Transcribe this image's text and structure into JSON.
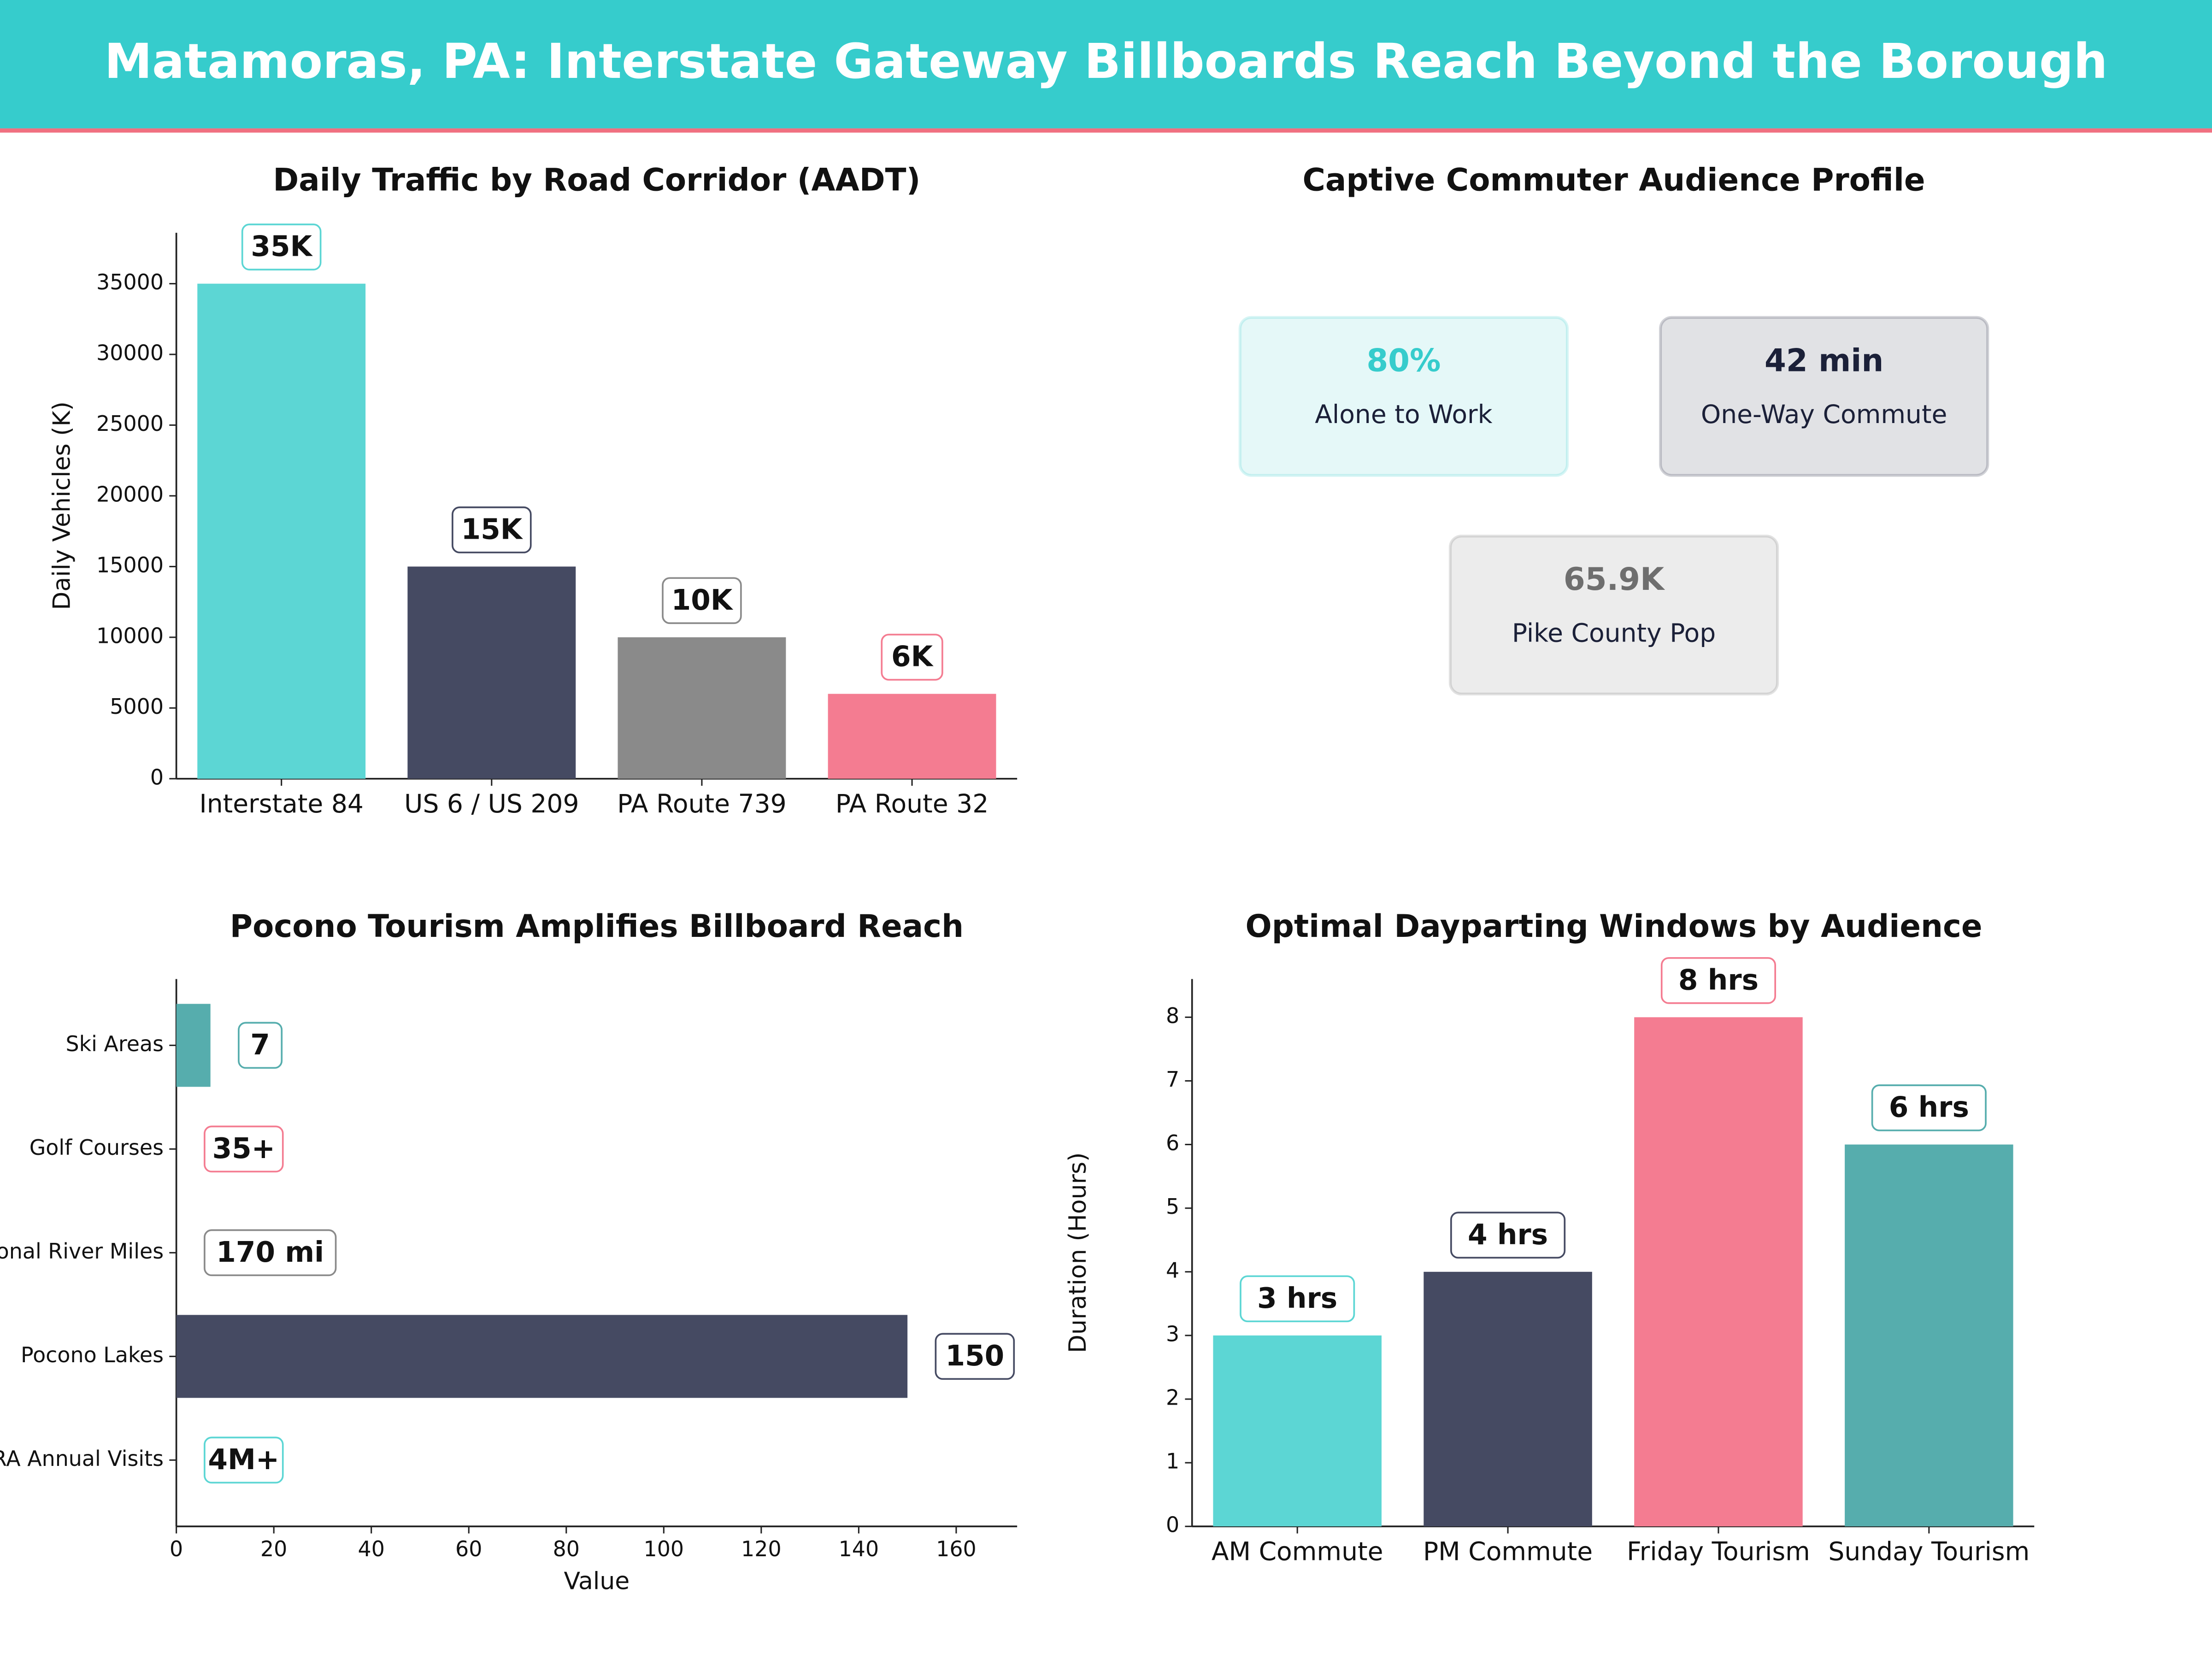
{
  "title": "Matamoras, PA: Interstate Gateway Billboards Reach Beyond the Borough",
  "chart_data": [
    {
      "type": "bar",
      "title": "Daily Traffic by Road Corridor (AADT)",
      "categories": [
        "Interstate 84",
        "US 6 / US 209",
        "PA Route 739",
        "PA Route 32"
      ],
      "values": [
        35000,
        15000,
        10000,
        6000
      ],
      "value_labels": [
        "35K",
        "15K",
        "10K",
        "6K"
      ],
      "colors": [
        "#5cd6d4",
        "#454a62",
        "#8a8a8a",
        "#f47c91"
      ],
      "ylabel": "Daily Vehicles (K)",
      "ylim": [
        0,
        38600
      ],
      "yticks": [
        0,
        5000,
        10000,
        15000,
        20000,
        25000,
        30000,
        35000
      ]
    },
    {
      "type": "kpi",
      "title": "Captive Commuter Audience Profile",
      "values": [
        80,
        42,
        65900
      ],
      "value_labels": [
        "80%",
        "42 min",
        "65.9K"
      ],
      "labels": [
        "Alone to Work",
        "One-Way Commute",
        "Pike County Pop"
      ],
      "colors": [
        "#36cccc",
        "#1b2038",
        "#6e6e6e"
      ]
    },
    {
      "type": "hbar",
      "title": "Pocono Tourism Amplifies Billboard Reach",
      "categories": [
        "Ski Areas",
        "Golf Courses",
        "Regional River Miles",
        "Pocono Lakes",
        "NRA Annual Visits"
      ],
      "values": [
        7,
        null,
        null,
        150,
        null
      ],
      "value_labels": [
        "7",
        "35+",
        "170 mi",
        "150",
        "4M+"
      ],
      "colors": [
        "#56adad",
        "#f47c91",
        "#8a8a8a",
        "#454a62",
        "#5cd6d4"
      ],
      "xlabel": "Value",
      "xlim": [
        0,
        172.5
      ],
      "xticks": [
        0,
        20,
        40,
        60,
        80,
        100,
        120,
        140,
        160
      ]
    },
    {
      "type": "bar",
      "title": "Optimal Dayparting Windows by Audience",
      "categories": [
        "AM Commute",
        "PM Commute",
        "Friday Tourism",
        "Sunday Tourism"
      ],
      "values": [
        3,
        4,
        8,
        6
      ],
      "value_labels": [
        "3 hrs",
        "4 hrs",
        "8 hrs",
        "6 hrs"
      ],
      "colors": [
        "#5cd6d4",
        "#454a62",
        "#f47c91",
        "#56adad"
      ],
      "ylabel": "Duration (Hours)",
      "ylim": [
        0,
        8.6
      ],
      "yticks": [
        0,
        1,
        2,
        3,
        4,
        5,
        6,
        7,
        8
      ]
    }
  ]
}
